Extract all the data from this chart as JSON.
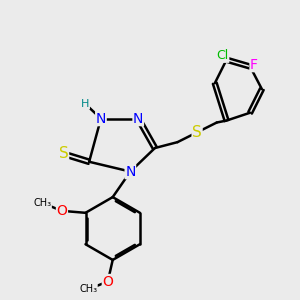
{
  "background_color": "#ebebeb",
  "bond_width": 1.8,
  "figsize": [
    3.0,
    3.0
  ],
  "dpi": 100,
  "colors": {
    "N": "#0000ff",
    "S": "#cccc00",
    "O": "#ff0000",
    "Cl": "#00bb00",
    "F": "#ff00ff",
    "C": "#000000",
    "H": "#008888",
    "bond": "#000000"
  },
  "label_fontsize": 10
}
